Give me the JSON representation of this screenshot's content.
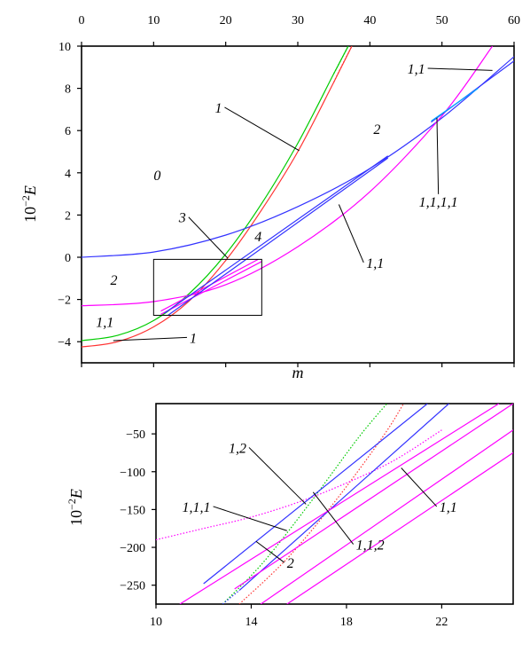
{
  "chart_data": [
    {
      "type": "line",
      "xlabel": "m",
      "ylabel_prefix": "10",
      "ylabel_exp": "−2",
      "ylabel_var": "E",
      "xlim": [
        0,
        60
      ],
      "ylim": [
        -5,
        10
      ],
      "xticks": [
        0,
        10,
        20,
        30,
        40,
        50,
        60
      ],
      "yticks": [
        -4,
        -2,
        0,
        2,
        4,
        6,
        8,
        10
      ],
      "inset_box": {
        "x": [
          10,
          25
        ],
        "y": [
          -2.75,
          -0.1
        ]
      },
      "series": [
        {
          "color": "#00cc00",
          "style": "solid",
          "x": [
            0,
            5,
            10,
            15,
            20,
            25,
            30,
            35,
            37
          ],
          "y": [
            -3.95,
            -3.7,
            -3.0,
            -1.7,
            0.15,
            2.55,
            5.4,
            8.7,
            10.0
          ]
        },
        {
          "color": "#00cc00",
          "style": "dotted",
          "x": [
            35,
            36,
            37
          ],
          "y": [
            8.7,
            9.35,
            10.0
          ]
        },
        {
          "color": "#ff3333",
          "style": "solid",
          "x": [
            0,
            5,
            10,
            15,
            20,
            25,
            30,
            35,
            37.5
          ],
          "y": [
            -4.25,
            -4.0,
            -3.3,
            -2.05,
            -0.15,
            2.25,
            5.0,
            8.3,
            10.0
          ]
        },
        {
          "color": "#ff3333",
          "style": "dotted",
          "x": [
            35,
            36,
            37.5
          ],
          "y": [
            8.3,
            9.0,
            10.0
          ]
        },
        {
          "color": "#3333ff",
          "style": "solid",
          "x": [
            0,
            10,
            20,
            30,
            40,
            50,
            60
          ],
          "y": [
            0.0,
            0.25,
            1.05,
            2.4,
            4.2,
            6.6,
            9.5
          ]
        },
        {
          "color": "#ff00ff",
          "style": "solid",
          "x": [
            0,
            10,
            20,
            30,
            40,
            50,
            57
          ],
          "y": [
            -2.3,
            -2.1,
            -1.3,
            0.5,
            3.1,
            6.7,
            10.0
          ]
        },
        {
          "color": "#ff00ff",
          "style": "solid",
          "x": [
            11,
            24.5
          ],
          "y": [
            -2.55,
            -0.1
          ]
        },
        {
          "color": "#ff00ff",
          "style": "solid",
          "x": [
            11,
            25
          ],
          "y": [
            -2.7,
            -0.2
          ]
        },
        {
          "color": "#3333ff",
          "style": "solid",
          "x": [
            11.5,
            42.5
          ],
          "y": [
            -2.65,
            4.8
          ]
        },
        {
          "color": "#3333ff",
          "style": "solid",
          "x": [
            12,
            42.5
          ],
          "y": [
            -2.75,
            4.7
          ]
        },
        {
          "color": "#3333ff",
          "style": "solid",
          "x": [
            48.5,
            60
          ],
          "y": [
            6.4,
            9.3
          ]
        },
        {
          "color": "#00aaff",
          "style": "solid",
          "x": [
            48.5,
            55
          ],
          "y": [
            6.45,
            8.0
          ]
        }
      ],
      "annotations": [
        {
          "text": "1,1",
          "x": 45.2,
          "y": 8.7,
          "pointer": [
            57,
            8.85
          ]
        },
        {
          "text": "1",
          "x": 18.5,
          "y": 6.85,
          "pointer": [
            30.2,
            5.05
          ]
        },
        {
          "text": "2",
          "x": 40.5,
          "y": 5.85
        },
        {
          "text": "0",
          "x": 10,
          "y": 3.65
        },
        {
          "text": "1,1,1,1",
          "x": 46.8,
          "y": 2.4,
          "pointer": [
            49.3,
            6.6
          ]
        },
        {
          "text": "3",
          "x": 13.5,
          "y": 1.65,
          "pointer": [
            20.3,
            -0.05
          ]
        },
        {
          "text": "4",
          "x": 24,
          "y": 0.75
        },
        {
          "text": "1,1",
          "x": 39.5,
          "y": -0.5,
          "pointer": [
            35.7,
            2.5
          ]
        },
        {
          "text": "2",
          "x": 4,
          "y": -1.3
        },
        {
          "text": "1,1",
          "x": 2,
          "y": -3.3
        },
        {
          "text": "1",
          "x": 15,
          "y": -4.05,
          "pointer": [
            4.4,
            -3.95
          ]
        }
      ]
    },
    {
      "type": "line",
      "ylabel_prefix": "10",
      "ylabel_exp": "−2",
      "ylabel_var": "E",
      "xlim": [
        10,
        25
      ],
      "ylim": [
        -275,
        -10
      ],
      "xticks": [
        10,
        14,
        18,
        22
      ],
      "yticks": [
        -50,
        -100,
        -150,
        -200,
        -250
      ],
      "series": [
        {
          "color": "#00cc00",
          "style": "dotted",
          "x": [
            12.8,
            14.5,
            16.5,
            18.5,
            19.7
          ],
          "y": [
            -275,
            -220,
            -140,
            -55,
            -10
          ]
        },
        {
          "color": "#ff3333",
          "style": "dotted",
          "x": [
            13.5,
            15.5,
            17.5,
            19.5,
            20.4
          ],
          "y": [
            -275,
            -215,
            -140,
            -55,
            -10
          ]
        },
        {
          "color": "#ff00ff",
          "style": "dotted",
          "x": [
            10,
            12,
            14,
            16,
            18,
            20,
            22
          ],
          "y": [
            -190,
            -175,
            -160,
            -140,
            -115,
            -85,
            -45
          ]
        },
        {
          "color": "#3333ff",
          "style": "solid",
          "x": [
            12,
            21.4
          ],
          "y": [
            -248,
            -10
          ]
        },
        {
          "color": "#3333ff",
          "style": "dotted",
          "x": [
            12.8,
            13.5
          ],
          "y": [
            -275,
            -257
          ]
        },
        {
          "color": "#3333ff",
          "style": "solid",
          "x": [
            13.5,
            22.3
          ],
          "y": [
            -257,
            -10
          ]
        },
        {
          "color": "#ff00ff",
          "style": "solid",
          "x": [
            11,
            24.4
          ],
          "y": [
            -275,
            -10
          ]
        },
        {
          "color": "#ff00ff",
          "style": "solid",
          "x": [
            13.3,
            25
          ],
          "y": [
            -255,
            -10
          ]
        },
        {
          "color": "#ff00ff",
          "style": "solid",
          "x": [
            14.4,
            25
          ],
          "y": [
            -275,
            -45
          ]
        },
        {
          "color": "#ff00ff",
          "style": "solid",
          "x": [
            15.5,
            25
          ],
          "y": [
            -275,
            -75
          ]
        }
      ],
      "annotations": [
        {
          "text": "1,2",
          "x": 13.05,
          "y": -75,
          "pointer": [
            16.3,
            -143
          ]
        },
        {
          "text": "1,1,1",
          "x": 11.1,
          "y": -153,
          "pointer": [
            15.5,
            -178
          ]
        },
        {
          "text": "2",
          "x": 15.5,
          "y": -227,
          "pointer": [
            14.2,
            -192
          ]
        },
        {
          "text": "1,1,2",
          "x": 18.4,
          "y": -203,
          "pointer": [
            16.6,
            -127
          ]
        },
        {
          "text": "1,1",
          "x": 21.9,
          "y": -153,
          "pointer": [
            20.3,
            -95
          ]
        }
      ]
    }
  ]
}
